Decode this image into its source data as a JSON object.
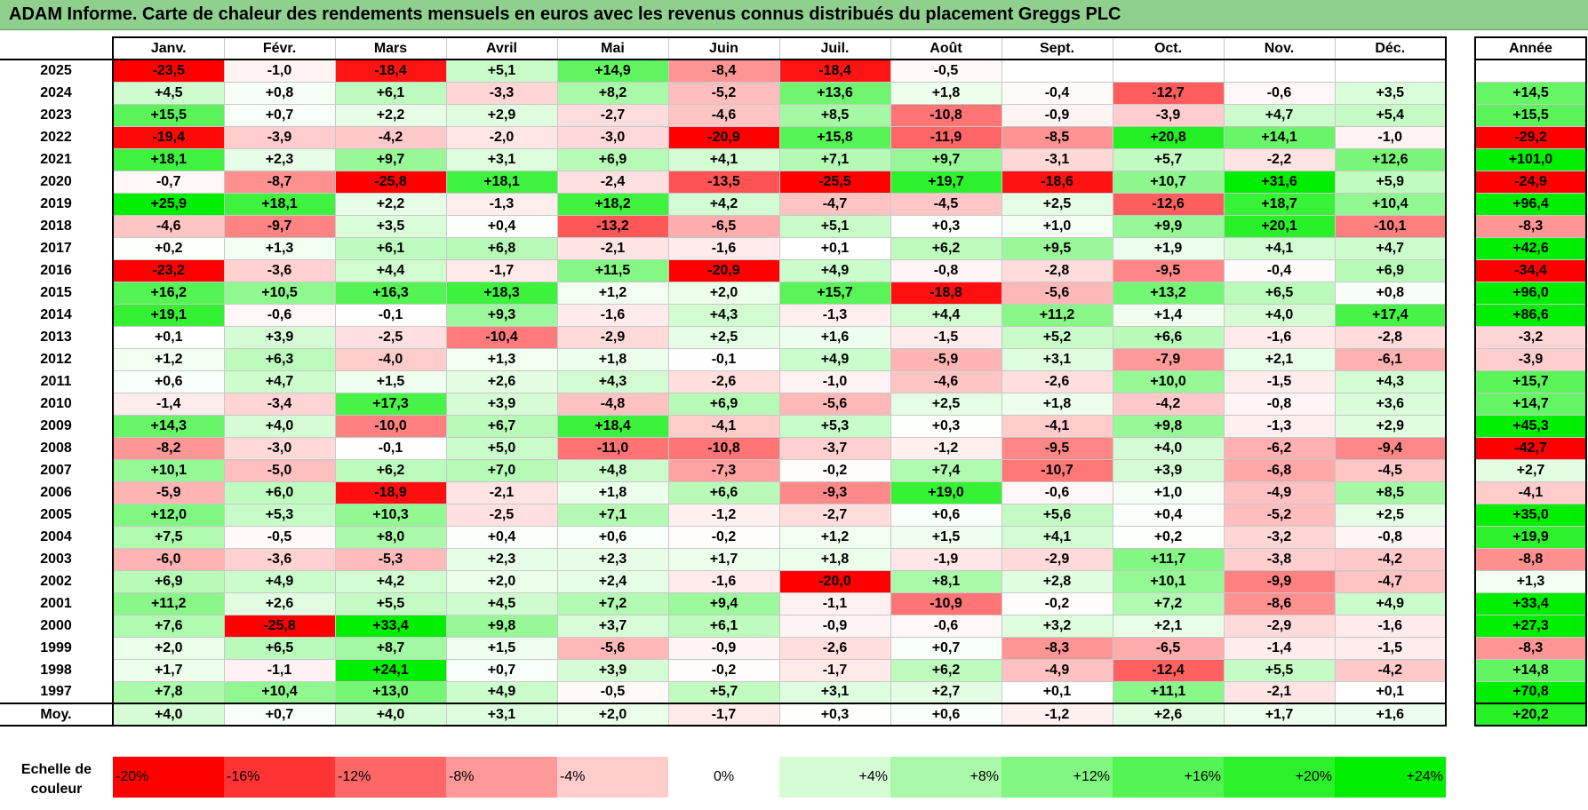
{
  "title": "ADAM Informe. Carte de chaleur des rendements mensuels en euros avec les revenus connus distribués du placement Greggs PLC",
  "chart_data": {
    "type": "heatmap",
    "months": [
      "Janv.",
      "Févr.",
      "Mars",
      "Avril",
      "Mai",
      "Juin",
      "Juil.",
      "Août",
      "Sept.",
      "Oct.",
      "Nov.",
      "Déc."
    ],
    "year_column_label": "Année",
    "rows": [
      {
        "year": "2025",
        "months": [
          "-23,5",
          "-1,0",
          "-18,4",
          "+5,1",
          "+14,9",
          "-8,4",
          "-18,4",
          "-0,5",
          "",
          "",
          "",
          ""
        ],
        "annual": ""
      },
      {
        "year": "2024",
        "months": [
          "+4,5",
          "+0,8",
          "+6,1",
          "-3,3",
          "+8,2",
          "-5,2",
          "+13,6",
          "+1,8",
          "-0,4",
          "-12,7",
          "-0,6",
          "+3,5"
        ],
        "annual": "+14,5"
      },
      {
        "year": "2023",
        "months": [
          "+15,5",
          "+0,7",
          "+2,2",
          "+2,9",
          "-2,7",
          "-4,6",
          "+8,5",
          "-10,8",
          "-0,9",
          "-3,9",
          "+4,7",
          "+5,4"
        ],
        "annual": "+15,5"
      },
      {
        "year": "2022",
        "months": [
          "-19,4",
          "-3,9",
          "-4,2",
          "-2,0",
          "-3,0",
          "-20,9",
          "+15,8",
          "-11,9",
          "-8,5",
          "+20,8",
          "+14,1",
          "-1,0"
        ],
        "annual": "-29,2"
      },
      {
        "year": "2021",
        "months": [
          "+18,1",
          "+2,3",
          "+9,7",
          "+3,1",
          "+6,9",
          "+4,1",
          "+7,1",
          "+9,7",
          "-3,1",
          "+5,7",
          "-2,2",
          "+12,6"
        ],
        "annual": "+101,0"
      },
      {
        "year": "2020",
        "months": [
          "-0,7",
          "-8,7",
          "-25,8",
          "+18,1",
          "-2,4",
          "-13,5",
          "-25,5",
          "+19,7",
          "-18,6",
          "+10,7",
          "+31,6",
          "+5,9"
        ],
        "annual": "-24,9"
      },
      {
        "year": "2019",
        "months": [
          "+25,9",
          "+18,1",
          "+2,2",
          "-1,3",
          "+18,2",
          "+4,2",
          "-4,7",
          "-4,5",
          "+2,5",
          "-12,6",
          "+18,7",
          "+10,4"
        ],
        "annual": "+96,4"
      },
      {
        "year": "2018",
        "months": [
          "-4,6",
          "-9,7",
          "+3,5",
          "+0,4",
          "-13,2",
          "-6,5",
          "+5,1",
          "+0,3",
          "+1,0",
          "+9,9",
          "+20,1",
          "-10,1"
        ],
        "annual": "-8,3"
      },
      {
        "year": "2017",
        "months": [
          "+0,2",
          "+1,3",
          "+6,1",
          "+6,8",
          "-2,1",
          "-1,6",
          "+0,1",
          "+6,2",
          "+9,5",
          "+1,9",
          "+4,1",
          "+4,7"
        ],
        "annual": "+42,6"
      },
      {
        "year": "2016",
        "months": [
          "-23,2",
          "-3,6",
          "+4,4",
          "-1,7",
          "+11,5",
          "-20,9",
          "+4,9",
          "-0,8",
          "-2,8",
          "-9,5",
          "-0,4",
          "+6,9"
        ],
        "annual": "-34,4"
      },
      {
        "year": "2015",
        "months": [
          "+16,2",
          "+10,5",
          "+16,3",
          "+18,3",
          "+1,2",
          "+2,0",
          "+15,7",
          "-18,8",
          "-5,6",
          "+13,2",
          "+6,5",
          "+0,8"
        ],
        "annual": "+96,0"
      },
      {
        "year": "2014",
        "months": [
          "+19,1",
          "-0,6",
          "-0,1",
          "+9,3",
          "-1,6",
          "+4,3",
          "-1,3",
          "+4,4",
          "+11,2",
          "+1,4",
          "+4,0",
          "+17,4"
        ],
        "annual": "+86,6"
      },
      {
        "year": "2013",
        "months": [
          "+0,1",
          "+3,9",
          "-2,5",
          "-10,4",
          "-2,9",
          "+2,5",
          "+1,6",
          "-1,5",
          "+5,2",
          "+6,6",
          "-1,6",
          "-2,8"
        ],
        "annual": "-3,2"
      },
      {
        "year": "2012",
        "months": [
          "+1,2",
          "+6,3",
          "-4,0",
          "+1,3",
          "+1,8",
          "-0,1",
          "+4,9",
          "-5,9",
          "+3,1",
          "-7,9",
          "+2,1",
          "-6,1"
        ],
        "annual": "-3,9"
      },
      {
        "year": "2011",
        "months": [
          "+0,6",
          "+4,7",
          "+1,5",
          "+2,6",
          "+4,3",
          "-2,6",
          "-1,0",
          "-4,6",
          "-2,6",
          "+10,0",
          "-1,5",
          "+4,3"
        ],
        "annual": "+15,7"
      },
      {
        "year": "2010",
        "months": [
          "-1,4",
          "-3,4",
          "+17,3",
          "+3,9",
          "-4,8",
          "+6,9",
          "-5,6",
          "+2,5",
          "+1,8",
          "-4,2",
          "-0,8",
          "+3,6"
        ],
        "annual": "+14,7"
      },
      {
        "year": "2009",
        "months": [
          "+14,3",
          "+4,0",
          "-10,0",
          "+6,7",
          "+18,4",
          "-4,1",
          "+5,3",
          "+0,3",
          "-4,1",
          "+9,8",
          "-1,3",
          "+2,9"
        ],
        "annual": "+45,3"
      },
      {
        "year": "2008",
        "months": [
          "-8,2",
          "-3,0",
          "-0,1",
          "+5,0",
          "-11,0",
          "-10,8",
          "-3,7",
          "-1,2",
          "-9,5",
          "+4,0",
          "-6,2",
          "-9,4"
        ],
        "annual": "-42,7"
      },
      {
        "year": "2007",
        "months": [
          "+10,1",
          "-5,0",
          "+6,2",
          "+7,0",
          "+4,8",
          "-7,3",
          "-0,2",
          "+7,4",
          "-10,7",
          "+3,9",
          "-6,8",
          "-4,5"
        ],
        "annual": "+2,7"
      },
      {
        "year": "2006",
        "months": [
          "-5,9",
          "+6,0",
          "-18,9",
          "-2,1",
          "+1,8",
          "+6,6",
          "-9,3",
          "+19,0",
          "-0,6",
          "+1,0",
          "-4,9",
          "+8,5"
        ],
        "annual": "-4,1"
      },
      {
        "year": "2005",
        "months": [
          "+12,0",
          "+5,3",
          "+10,3",
          "-2,5",
          "+7,1",
          "-1,2",
          "-2,7",
          "+0,6",
          "+5,6",
          "+0,4",
          "-5,2",
          "+2,5"
        ],
        "annual": "+35,0"
      },
      {
        "year": "2004",
        "months": [
          "+7,5",
          "-0,5",
          "+8,0",
          "+0,4",
          "+0,6",
          "-0,2",
          "+1,2",
          "+1,5",
          "+4,1",
          "+0,2",
          "-3,2",
          "-0,8"
        ],
        "annual": "+19,9"
      },
      {
        "year": "2003",
        "months": [
          "-6,0",
          "-3,6",
          "-5,3",
          "+2,3",
          "+2,3",
          "+1,7",
          "+1,8",
          "-1,9",
          "-2,9",
          "+11,7",
          "-3,8",
          "-4,2"
        ],
        "annual": "-8,8"
      },
      {
        "year": "2002",
        "months": [
          "+6,9",
          "+4,9",
          "+4,2",
          "+2,0",
          "+2,4",
          "-1,6",
          "-20,0",
          "+8,1",
          "+2,8",
          "+10,1",
          "-9,9",
          "-4,7"
        ],
        "annual": "+1,3"
      },
      {
        "year": "2001",
        "months": [
          "+11,2",
          "+2,6",
          "+5,5",
          "+4,5",
          "+7,2",
          "+9,4",
          "-1,1",
          "-10,9",
          "-0,2",
          "+7,2",
          "-8,6",
          "+4,9"
        ],
        "annual": "+33,4"
      },
      {
        "year": "2000",
        "months": [
          "+7,6",
          "-25,8",
          "+33,4",
          "+9,8",
          "+3,7",
          "+6,1",
          "-0,9",
          "-0,6",
          "+3,2",
          "+2,1",
          "-2,9",
          "-1,6"
        ],
        "annual": "+27,3"
      },
      {
        "year": "1999",
        "months": [
          "+2,0",
          "+6,5",
          "+8,7",
          "+1,5",
          "-5,6",
          "-0,9",
          "-2,6",
          "+0,7",
          "-8,3",
          "-6,5",
          "-1,4",
          "-1,5"
        ],
        "annual": "-8,3"
      },
      {
        "year": "1998",
        "months": [
          "+1,7",
          "-1,1",
          "+24,1",
          "+0,7",
          "+3,9",
          "-0,2",
          "-1,7",
          "+6,2",
          "-4,9",
          "-12,4",
          "+5,5",
          "-4,2"
        ],
        "annual": "+14,8"
      },
      {
        "year": "1997",
        "months": [
          "+7,8",
          "+10,4",
          "+13,0",
          "+4,9",
          "-0,5",
          "+5,7",
          "+3,1",
          "+2,7",
          "+0,1",
          "+11,1",
          "-2,1",
          "+0,1"
        ],
        "annual": "+70,8"
      }
    ],
    "average": {
      "label": "Moy.",
      "months": [
        "+4,0",
        "+0,7",
        "+4,0",
        "+3,1",
        "+2,0",
        "-1,7",
        "+0,3",
        "+0,6",
        "-1,2",
        "+2,6",
        "+1,7",
        "+1,6"
      ],
      "annual": "+20,2"
    },
    "color_scale": {
      "label": "Echelle de couleur",
      "stops": [
        "-20%",
        "-16%",
        "-12%",
        "-8%",
        "-4%",
        "0%",
        "+4%",
        "+8%",
        "+12%",
        "+16%",
        "+20%",
        "+24%"
      ],
      "negative_color": "#ff0000",
      "neutral_color": "#ffffff",
      "positive_color": "#00ee00"
    }
  }
}
